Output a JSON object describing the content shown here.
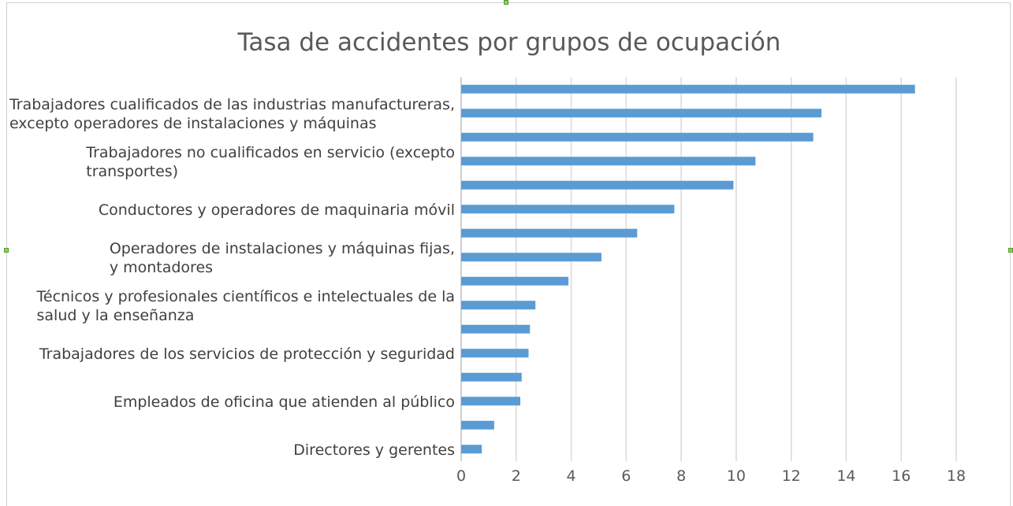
{
  "chart_data": {
    "type": "bar",
    "orientation": "horizontal",
    "title": "Tasa de accidentes por grupos de ocupación",
    "xlabel": "",
    "ylabel": "",
    "xlim": [
      0,
      18
    ],
    "x_ticks": [
      "0",
      "2",
      "4",
      "6",
      "8",
      "10",
      "12",
      "14",
      "16",
      "18"
    ],
    "grid": "vertical",
    "legend": "none",
    "bar_color": "#5b9bd5",
    "bars": [
      {
        "category": "",
        "value": 16.5
      },
      {
        "category": "Trabajadores cualificados de las industrias manufactureras, excepto operadores de instalaciones y máquinas",
        "value": 13.1
      },
      {
        "category": "",
        "value": 12.8
      },
      {
        "category": "Trabajadores no cualificados en servicio (excepto transportes)",
        "value": 10.7
      },
      {
        "category": "",
        "value": 9.9
      },
      {
        "category": "Conductores y operadores de maquinaria móvil",
        "value": 7.75
      },
      {
        "category": "",
        "value": 6.4
      },
      {
        "category": "Operadores de instalaciones y máquinas fijas, y montadores",
        "value": 5.1
      },
      {
        "category": "",
        "value": 3.9
      },
      {
        "category": "Técnicos y profesionales científicos e intelectuales de la salud y la enseñanza",
        "value": 2.7
      },
      {
        "category": "",
        "value": 2.5
      },
      {
        "category": "Trabajadores de los servicios de protección y seguridad",
        "value": 2.45
      },
      {
        "category": "",
        "value": 2.2
      },
      {
        "category": "Empleados de oficina que atienden al público",
        "value": 2.15
      },
      {
        "category": "",
        "value": 1.2
      },
      {
        "category": "Directores y gerentes",
        "value": 0.75
      }
    ],
    "category_label_lines": {
      "1": [
        "Trabajadores cualificados de las industrias manufactureras,",
        "excepto operadores de instalaciones y máquinas"
      ],
      "3": [
        "Trabajadores no cualificados en servicio (excepto",
        "transportes)"
      ],
      "5": [
        "Conductores y operadores de maquinaria móvil"
      ],
      "7": [
        "Operadores de instalaciones y máquinas fijas,",
        "y montadores"
      ],
      "9": [
        "Técnicos y profesionales científicos e intelectuales de la",
        "salud y la enseñanza"
      ],
      "11": [
        "Trabajadores de los servicios de protección y seguridad"
      ],
      "13": [
        "Empleados de oficina que atienden al público"
      ],
      "15": [
        "Directores y gerentes"
      ]
    }
  }
}
